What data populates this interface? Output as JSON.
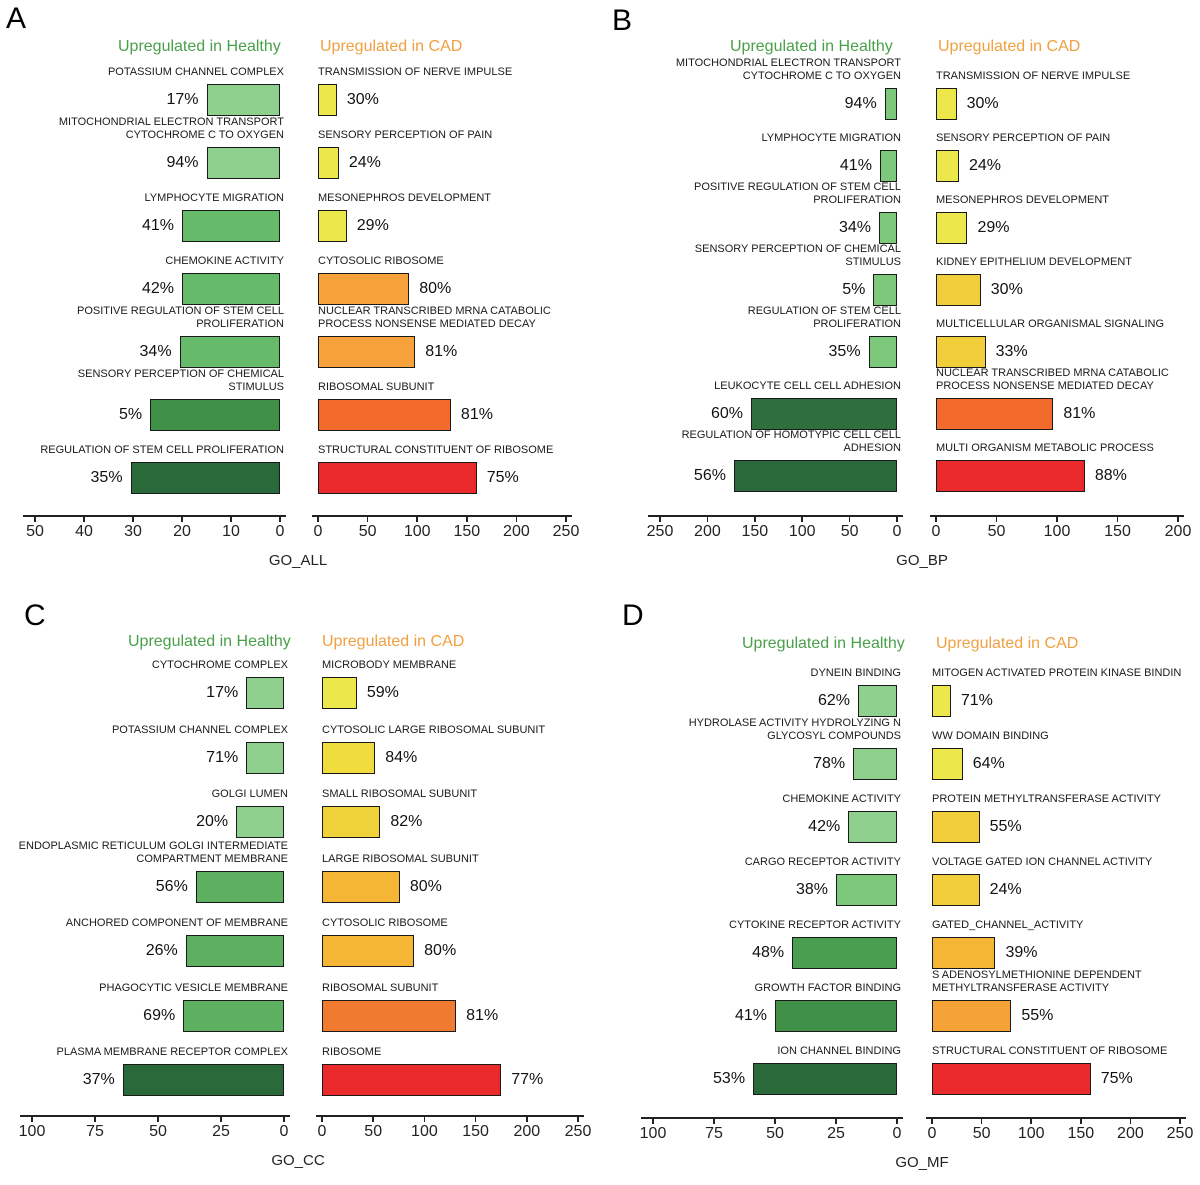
{
  "chart_data": [
    {
      "type": "bar",
      "panel": "A",
      "xlabel": "GO_ALL",
      "left_header": "Upregulated in Healthy",
      "right_header": "Upregulated in CAD",
      "left_axis": {
        "ticks": [
          50,
          40,
          30,
          20,
          10,
          0
        ],
        "range": [
          0,
          50
        ]
      },
      "right_axis": {
        "ticks": [
          0,
          50,
          100,
          150,
          200,
          250
        ],
        "range": [
          0,
          250
        ]
      },
      "healthy": [
        {
          "term": "POTASSIUM CHANNEL COMPLEX",
          "value": 15,
          "pct": "17%",
          "color": "#8fd08f"
        },
        {
          "term": "MITOCHONDRIAL ELECTRON TRANSPORT CYTOCHROME C TO OXYGEN",
          "value": 15,
          "pct": "94%",
          "color": "#8fd08f"
        },
        {
          "term": "LYMPHOCYTE MIGRATION",
          "value": 20,
          "pct": "41%",
          "color": "#66bb6a"
        },
        {
          "term": "CHEMOKINE ACTIVITY",
          "value": 20,
          "pct": "42%",
          "color": "#66bb6a"
        },
        {
          "term": "POSITIVE REGULATION OF STEM CELL PROLIFERATION",
          "value": 20.5,
          "pct": "34%",
          "color": "#66bb6a"
        },
        {
          "term": "SENSORY PERCEPTION OF CHEMICAL STIMULUS",
          "value": 26.5,
          "pct": "5%",
          "color": "#3f8f46"
        },
        {
          "term": "REGULATION OF STEM CELL PROLIFERATION",
          "value": 30.5,
          "pct": "35%",
          "color": "#2a6a3a"
        }
      ],
      "cad": [
        {
          "term": "TRANSMISSION OF NERVE IMPULSE",
          "value": 19,
          "pct": "30%",
          "color": "#ece74a"
        },
        {
          "term": "SENSORY PERCEPTION OF PAIN",
          "value": 21,
          "pct": "24%",
          "color": "#ece74a"
        },
        {
          "term": "MESONEPHROS DEVELOPMENT",
          "value": 29,
          "pct": "29%",
          "color": "#ece74a"
        },
        {
          "term": "CYTOSOLIC RIBOSOME",
          "value": 92,
          "pct": "80%",
          "color": "#f7a23a"
        },
        {
          "term": "NUCLEAR TRANSCRIBED MRNA CATABOLIC PROCESS NONSENSE MEDIATED DECAY",
          "value": 98,
          "pct": "81%",
          "color": "#f7a23a"
        },
        {
          "term": "RIBOSOMAL SUBUNIT",
          "value": 134,
          "pct": "81%",
          "color": "#f26a2c"
        },
        {
          "term": "STRUCTURAL CONSTITUENT OF RIBOSOME",
          "value": 160,
          "pct": "75%",
          "color": "#ea2a2a"
        }
      ]
    },
    {
      "type": "bar",
      "panel": "B",
      "xlabel": "GO_BP",
      "left_header": "Upregulated in Healthy",
      "right_header": "Upregulated in CAD",
      "left_axis": {
        "ticks": [
          250,
          200,
          150,
          100,
          50,
          0
        ],
        "range": [
          0,
          250
        ]
      },
      "right_axis": {
        "ticks": [
          0,
          50,
          100,
          150,
          200
        ],
        "range": [
          0,
          200
        ]
      },
      "healthy": [
        {
          "term": "MITOCHONDRIAL ELECTRON TRANSPORT CYTOCHROME C TO OXYGEN",
          "value": 13,
          "pct": "94%",
          "color": "#7cc97c"
        },
        {
          "term": "LYMPHOCYTE MIGRATION",
          "value": 18,
          "pct": "41%",
          "color": "#7cc97c"
        },
        {
          "term": "POSITIVE REGULATION OF STEM CELL PROLIFERATION",
          "value": 19,
          "pct": "34%",
          "color": "#7cc97c"
        },
        {
          "term": "SENSORY PERCEPTION OF CHEMICAL STIMULUS",
          "value": 25,
          "pct": "5%",
          "color": "#7cc97c"
        },
        {
          "term": "REGULATION OF STEM CELL PROLIFERATION",
          "value": 30,
          "pct": "35%",
          "color": "#7cc97c"
        },
        {
          "term": "LEUKOCYTE CELL CELL ADHESION",
          "value": 154,
          "pct": "60%",
          "color": "#2f6f3e"
        },
        {
          "term": "REGULATION OF HOMOTYPIC CELL CELL ADHESION",
          "value": 172,
          "pct": "56%",
          "color": "#2a6a3a"
        }
      ],
      "cad": [
        {
          "term": "TRANSMISSION OF NERVE IMPULSE",
          "value": 17,
          "pct": "30%",
          "color": "#ece74a"
        },
        {
          "term": "SENSORY PERCEPTION OF PAIN",
          "value": 19,
          "pct": "24%",
          "color": "#ece74a"
        },
        {
          "term": "MESONEPHROS DEVELOPMENT",
          "value": 26,
          "pct": "29%",
          "color": "#ece74a"
        },
        {
          "term": "KIDNEY EPITHELIUM DEVELOPMENT",
          "value": 37,
          "pct": "30%",
          "color": "#f2cf3a"
        },
        {
          "term": "MULTICELLULAR ORGANISMAL SIGNALING",
          "value": 41,
          "pct": "33%",
          "color": "#f2cf3a"
        },
        {
          "term": "NUCLEAR TRANSCRIBED MRNA CATABOLIC PROCESS NONSENSE MEDIATED DECAY",
          "value": 97,
          "pct": "81%",
          "color": "#f26a2c"
        },
        {
          "term": "MULTI ORGANISM METABOLIC PROCESS",
          "value": 123,
          "pct": "88%",
          "color": "#ea2a2a"
        }
      ]
    },
    {
      "type": "bar",
      "panel": "C",
      "xlabel": "GO_CC",
      "left_header": "Upregulated in Healthy",
      "right_header": "Upregulated in CAD",
      "left_axis": {
        "ticks": [
          100,
          75,
          50,
          25,
          0
        ],
        "range": [
          0,
          100
        ]
      },
      "right_axis": {
        "ticks": [
          0,
          50,
          100,
          150,
          200,
          250
        ],
        "range": [
          0,
          250
        ]
      },
      "healthy": [
        {
          "term": "CYTOCHROME COMPLEX",
          "value": 15,
          "pct": "17%",
          "color": "#8fd08f"
        },
        {
          "term": "POTASSIUM CHANNEL COMPLEX",
          "value": 15,
          "pct": "71%",
          "color": "#8fd08f"
        },
        {
          "term": "GOLGI LUMEN",
          "value": 19,
          "pct": "20%",
          "color": "#8fd08f"
        },
        {
          "term": "ENDOPLASMIC RETICULUM GOLGI INTERMEDIATE COMPARTMENT MEMBRANE",
          "value": 35,
          "pct": "56%",
          "color": "#5cb060"
        },
        {
          "term": "ANCHORED COMPONENT OF MEMBRANE",
          "value": 39,
          "pct": "26%",
          "color": "#5cb060"
        },
        {
          "term": "PHAGOCYTIC VESICLE MEMBRANE",
          "value": 40,
          "pct": "69%",
          "color": "#5cb060"
        },
        {
          "term": "PLASMA MEMBRANE RECEPTOR COMPLEX",
          "value": 64,
          "pct": "37%",
          "color": "#2a6a3a"
        }
      ],
      "cad": [
        {
          "term": "MICROBODY MEMBRANE",
          "value": 34,
          "pct": "59%",
          "color": "#ece74a"
        },
        {
          "term": "CYTOSOLIC LARGE RIBOSOMAL SUBUNIT",
          "value": 52,
          "pct": "84%",
          "color": "#f0dc3c"
        },
        {
          "term": "SMALL RIBOSOMAL SUBUNIT",
          "value": 57,
          "pct": "82%",
          "color": "#f0d23a"
        },
        {
          "term": "LARGE RIBOSOMAL SUBUNIT",
          "value": 76,
          "pct": "80%",
          "color": "#f5b636"
        },
        {
          "term": "CYTOSOLIC RIBOSOME",
          "value": 90,
          "pct": "80%",
          "color": "#f5b636"
        },
        {
          "term": "RIBOSOMAL SUBUNIT",
          "value": 131,
          "pct": "81%",
          "color": "#f07a30"
        },
        {
          "term": "RIBOSOME",
          "value": 175,
          "pct": "77%",
          "color": "#ea2a2a"
        }
      ]
    },
    {
      "type": "bar",
      "panel": "D",
      "xlabel": "GO_MF",
      "left_header": "Upregulated in Healthy",
      "right_header": "Upregulated in CAD",
      "left_axis": {
        "ticks": [
          100,
          75,
          50,
          25,
          0
        ],
        "range": [
          0,
          100
        ]
      },
      "right_axis": {
        "ticks": [
          0,
          50,
          100,
          150,
          200,
          250
        ],
        "range": [
          0,
          250
        ]
      },
      "healthy": [
        {
          "term": "DYNEIN BINDING",
          "value": 16,
          "pct": "62%",
          "color": "#8fd08f"
        },
        {
          "term": "HYDROLASE ACTIVITY HYDROLYZING N GLYCOSYL COMPOUNDS",
          "value": 18,
          "pct": "78%",
          "color": "#8fd08f"
        },
        {
          "term": "CHEMOKINE ACTIVITY",
          "value": 20,
          "pct": "42%",
          "color": "#8fd08f"
        },
        {
          "term": "CARGO RECEPTOR ACTIVITY",
          "value": 25,
          "pct": "38%",
          "color": "#7cc97c"
        },
        {
          "term": "CYTOKINE RECEPTOR ACTIVITY",
          "value": 43,
          "pct": "48%",
          "color": "#4a9e50"
        },
        {
          "term": "GROWTH FACTOR BINDING",
          "value": 50,
          "pct": "41%",
          "color": "#3f8f46"
        },
        {
          "term": "ION CHANNEL BINDING",
          "value": 59,
          "pct": "53%",
          "color": "#2a6a3a"
        }
      ],
      "cad": [
        {
          "term": "MITOGEN ACTIVATED PROTEIN KINASE BINDIN",
          "value": 19,
          "pct": "71%",
          "color": "#ece74a"
        },
        {
          "term": "WW DOMAIN BINDING",
          "value": 31,
          "pct": "64%",
          "color": "#ece74a"
        },
        {
          "term": "PROTEIN METHYLTRANSFERASE ACTIVITY",
          "value": 48,
          "pct": "55%",
          "color": "#f2cf3a"
        },
        {
          "term": "VOLTAGE GATED ION CHANNEL ACTIVITY",
          "value": 48,
          "pct": "24%",
          "color": "#f2cf3a"
        },
        {
          "term": "GATED_CHANNEL_ACTIVITY",
          "value": 64,
          "pct": "39%",
          "color": "#f5b636"
        },
        {
          "term": "S ADENOSYLMETHIONINE DEPENDENT METHYLTRANSFERASE ACTIVITY",
          "value": 80,
          "pct": "55%",
          "color": "#f5a236"
        },
        {
          "term": "STRUCTURAL CONSTITUENT OF RIBOSOME",
          "value": 160,
          "pct": "75%",
          "color": "#ea2a2a"
        }
      ]
    }
  ],
  "colors": {
    "healthy_header": "#4aa04a",
    "cad_header": "#f0a040"
  }
}
